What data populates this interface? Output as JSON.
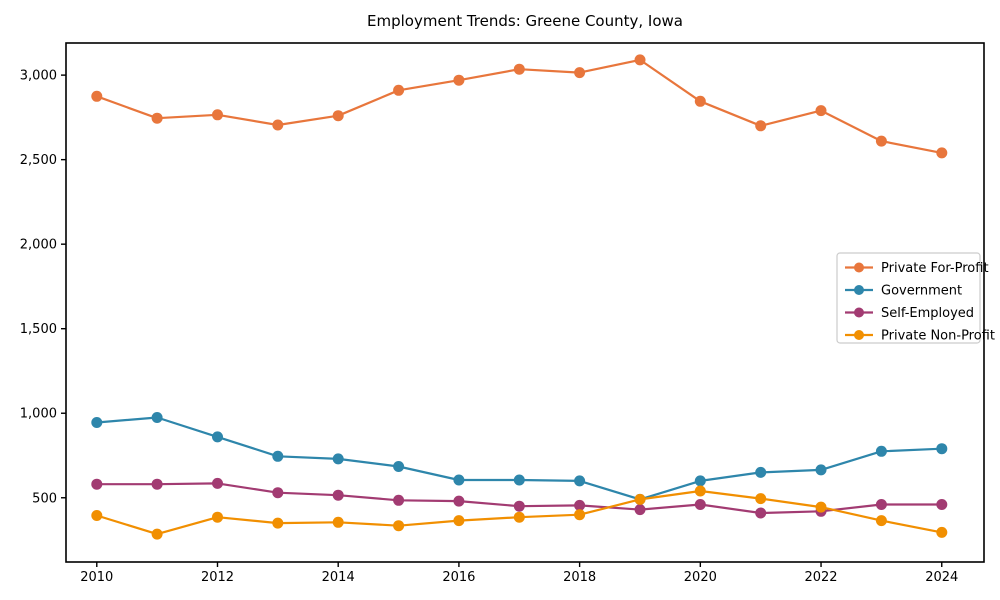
{
  "chart_data": {
    "type": "line",
    "title": "Employment Trends: Greene County, Iowa",
    "xlabel": "",
    "ylabel": "",
    "x": [
      2010,
      2011,
      2012,
      2013,
      2014,
      2015,
      2016,
      2017,
      2018,
      2019,
      2020,
      2021,
      2022,
      2023,
      2024
    ],
    "series": [
      {
        "name": "Private For-Profit",
        "color": "#E8763C",
        "values": [
          2875,
          2745,
          2765,
          2705,
          2760,
          2910,
          2970,
          3035,
          3015,
          3090,
          2845,
          2700,
          2790,
          2610,
          2540
        ]
      },
      {
        "name": "Government",
        "color": "#2E86AB",
        "values": [
          945,
          975,
          860,
          745,
          730,
          685,
          605,
          605,
          600,
          490,
          600,
          650,
          665,
          775,
          790
        ]
      },
      {
        "name": "Self-Employed",
        "color": "#A23B72",
        "values": [
          580,
          580,
          585,
          530,
          515,
          485,
          480,
          450,
          455,
          430,
          460,
          410,
          420,
          460,
          460
        ]
      },
      {
        "name": "Private Non-Profit",
        "color": "#F18F01",
        "values": [
          395,
          285,
          385,
          350,
          355,
          335,
          365,
          385,
          400,
          490,
          540,
          495,
          445,
          365,
          295
        ]
      }
    ],
    "xticks": [
      2010,
      2012,
      2014,
      2016,
      2018,
      2020,
      2022,
      2024
    ],
    "yticks": [
      500,
      1000,
      1500,
      2000,
      2500,
      3000
    ],
    "ytick_labels": [
      "500",
      "1,000",
      "1,500",
      "2,000",
      "2,500",
      "3,000"
    ],
    "xlim": [
      2009.49,
      2024.7
    ],
    "ylim": [
      120,
      3190
    ],
    "grid": false,
    "legend_position": "center right",
    "axis_color": "#000000",
    "legend_border_color": "#cccccc",
    "legend_bg_color": "#ffffff"
  }
}
